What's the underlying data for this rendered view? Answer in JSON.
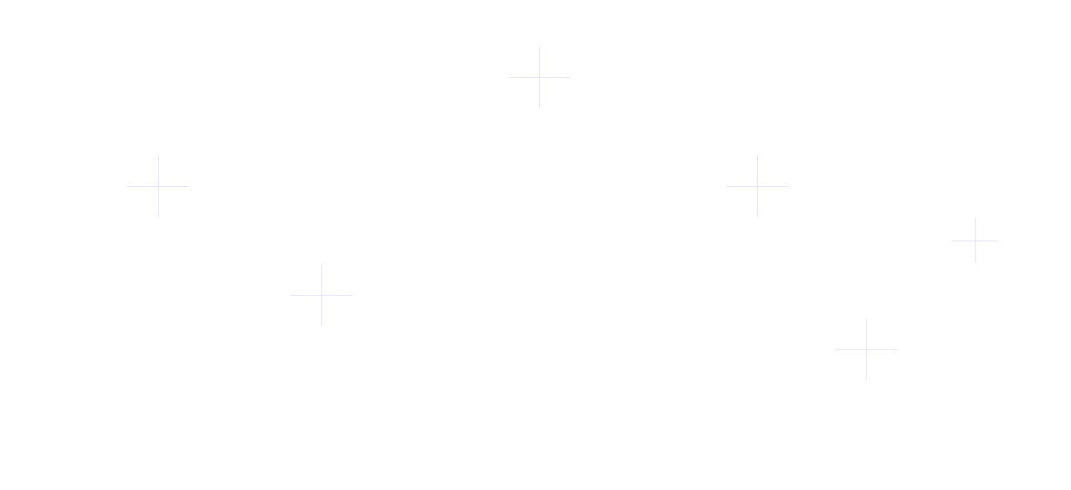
{
  "decor": {
    "cross_color": "#e4e4fb",
    "background_color": "#ffffff"
  }
}
